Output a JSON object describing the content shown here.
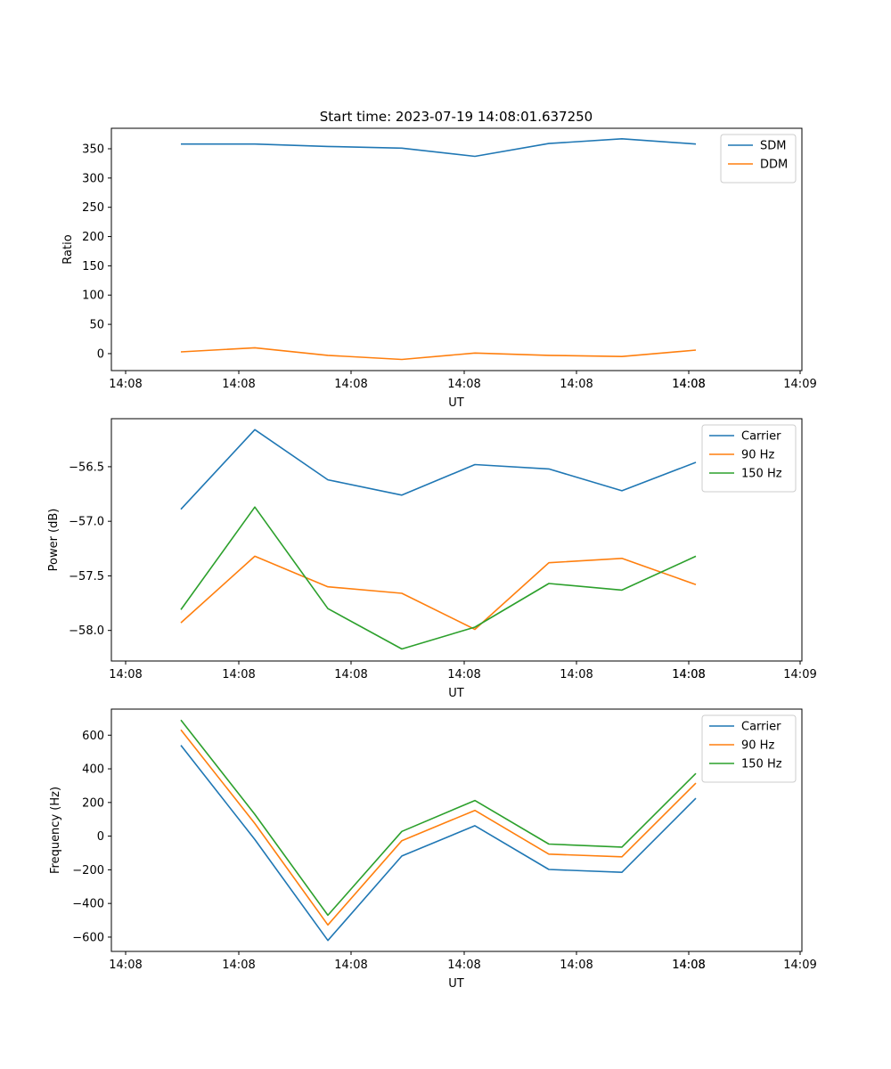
{
  "title": "Start time: 2023-07-19 14:08:01.637250",
  "colors": {
    "blue": "#1f77b4",
    "orange": "#ff7f0e",
    "green": "#2ca02c"
  },
  "chart_data": [
    {
      "type": "line",
      "xlabel": "UT",
      "ylabel": "Ratio",
      "x_ticks": [
        "14:08",
        "14:08",
        "14:08",
        "14:08",
        "14:08",
        "14:08",
        "14:08",
        "14:09"
      ],
      "y_ticks": [
        "0",
        "50",
        "100",
        "150",
        "200",
        "250",
        "300",
        "350"
      ],
      "y_tick_values": [
        0,
        50,
        100,
        150,
        200,
        250,
        300,
        350
      ],
      "ylim": [
        -29,
        385
      ],
      "x_index": [
        1,
        2,
        3,
        4,
        5,
        6,
        7,
        8
      ],
      "legend_position": "upper right",
      "series": [
        {
          "name": "SDM",
          "color": "#1f77b4",
          "values": [
            358,
            358,
            354,
            351,
            337,
            359,
            367,
            358
          ]
        },
        {
          "name": "DDM",
          "color": "#ff7f0e",
          "values": [
            3,
            10,
            -3,
            -10,
            1,
            -3,
            -5,
            6
          ]
        }
      ]
    },
    {
      "type": "line",
      "xlabel": "UT",
      "ylabel": "Power (dB)",
      "x_ticks": [
        "14:08",
        "14:08",
        "14:08",
        "14:08",
        "14:08",
        "14:08",
        "14:08",
        "14:09"
      ],
      "y_ticks": [
        "−56.5",
        "−57.0",
        "−57.5",
        "−58.0"
      ],
      "y_tick_values": [
        -56.5,
        -57.0,
        -57.5,
        -58.0
      ],
      "ylim": [
        -58.28,
        -56.06
      ],
      "x_index": [
        1,
        2,
        3,
        4,
        5,
        6,
        7,
        8
      ],
      "legend_position": "upper right",
      "series": [
        {
          "name": "Carrier",
          "color": "#1f77b4",
          "values": [
            -56.89,
            -56.16,
            -56.62,
            -56.76,
            -56.48,
            -56.52,
            -56.72,
            -56.46
          ]
        },
        {
          "name": "90 Hz",
          "color": "#ff7f0e",
          "values": [
            -57.93,
            -57.32,
            -57.6,
            -57.66,
            -57.99,
            -57.38,
            -57.34,
            -57.58
          ]
        },
        {
          "name": "150 Hz",
          "color": "#2ca02c",
          "values": [
            -57.81,
            -56.87,
            -57.8,
            -58.17,
            -57.97,
            -57.57,
            -57.63,
            -57.32
          ]
        }
      ]
    },
    {
      "type": "line",
      "xlabel": "UT",
      "ylabel": "Frequency (Hz)",
      "x_ticks": [
        "14:08",
        "14:08",
        "14:08",
        "14:08",
        "14:08",
        "14:08",
        "14:08",
        "14:09"
      ],
      "y_ticks": [
        "600",
        "400",
        "200",
        "0",
        "−200",
        "−400",
        "−600"
      ],
      "y_tick_values": [
        600,
        400,
        200,
        0,
        -200,
        -400,
        -600
      ],
      "ylim": [
        -685,
        755
      ],
      "x_index": [
        1,
        2,
        3,
        4,
        5,
        6,
        7,
        8
      ],
      "legend_position": "upper right",
      "series": [
        {
          "name": "Carrier",
          "color": "#1f77b4",
          "values": [
            540,
            -20,
            -620,
            -118,
            62,
            -198,
            -215,
            225
          ]
        },
        {
          "name": "90 Hz",
          "color": "#ff7f0e",
          "values": [
            632,
            75,
            -528,
            -27,
            153,
            -107,
            -123,
            315
          ]
        },
        {
          "name": "150 Hz",
          "color": "#2ca02c",
          "values": [
            690,
            130,
            -470,
            28,
            212,
            -47,
            -65,
            373
          ]
        }
      ]
    }
  ]
}
